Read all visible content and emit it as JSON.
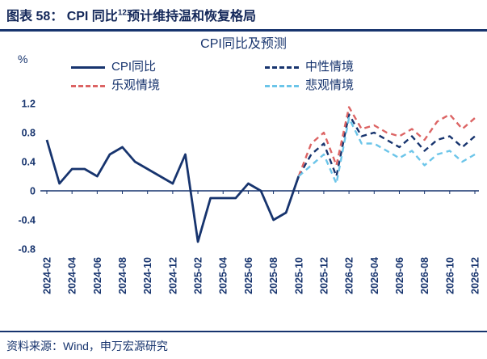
{
  "header": {
    "title_prefix": "图表 58： CPI 同比",
    "title_sup": "12",
    "title_suffix": "预计维持温和恢复格局"
  },
  "footer": {
    "source": "资料来源：Wind，申万宏源研究"
  },
  "colors": {
    "navy": "#17346e",
    "red": "#dc6464",
    "light_blue": "#6cc5e9"
  },
  "chart_data": {
    "type": "line",
    "title": "CPI同比及预测",
    "y_unit": "%",
    "ylim": [
      -0.8,
      1.2
    ],
    "y_ticks": [
      "1.2",
      "0.8",
      "0.4",
      "0",
      "-0.4",
      "-0.8"
    ],
    "x_tick_every": 2,
    "axis_color": "#17346e",
    "grid": false,
    "legend_position": "top",
    "x": [
      "2024-02",
      "2024-03",
      "2024-04",
      "2024-05",
      "2024-06",
      "2024-07",
      "2024-08",
      "2024-09",
      "2024-10",
      "2024-11",
      "2024-12",
      "2025-01",
      "2025-02",
      "2025-03",
      "2025-04",
      "2025-05",
      "2025-06",
      "2025-07",
      "2025-08",
      "2025-09",
      "2025-10",
      "2025-11",
      "2025-12",
      "2026-01",
      "2026-02",
      "2026-03",
      "2026-04",
      "2026-05",
      "2026-06",
      "2026-07",
      "2026-08",
      "2026-09",
      "2026-10",
      "2026-11",
      "2026-12"
    ],
    "series": [
      {
        "name": "CPI同比",
        "color": "#17346e",
        "style": "solid",
        "values": [
          0.7,
          0.1,
          0.3,
          0.3,
          0.2,
          0.5,
          0.6,
          0.4,
          0.3,
          0.2,
          0.1,
          0.5,
          -0.7,
          -0.1,
          -0.1,
          -0.1,
          0.1,
          0.0,
          -0.4,
          -0.3,
          0.2,
          null,
          null,
          null,
          null,
          null,
          null,
          null,
          null,
          null,
          null,
          null,
          null,
          null,
          null
        ]
      },
      {
        "name": "中性情境",
        "color": "#17346e",
        "style": "dashed",
        "values": [
          null,
          null,
          null,
          null,
          null,
          null,
          null,
          null,
          null,
          null,
          null,
          null,
          null,
          null,
          null,
          null,
          null,
          null,
          null,
          null,
          0.2,
          0.5,
          0.65,
          0.2,
          1.05,
          0.75,
          0.8,
          0.7,
          0.6,
          0.75,
          0.55,
          0.7,
          0.75,
          0.6,
          0.75
        ]
      },
      {
        "name": "乐观情境",
        "color": "#dc6464",
        "style": "dashed",
        "values": [
          null,
          null,
          null,
          null,
          null,
          null,
          null,
          null,
          null,
          null,
          null,
          null,
          null,
          null,
          null,
          null,
          null,
          null,
          null,
          null,
          0.2,
          0.65,
          0.8,
          0.35,
          1.15,
          0.85,
          0.9,
          0.8,
          0.75,
          0.85,
          0.7,
          0.95,
          1.05,
          0.85,
          1.0
        ]
      },
      {
        "name": "悲观情境",
        "color": "#6cc5e9",
        "style": "dashed",
        "values": [
          null,
          null,
          null,
          null,
          null,
          null,
          null,
          null,
          null,
          null,
          null,
          null,
          null,
          null,
          null,
          null,
          null,
          null,
          null,
          null,
          0.2,
          0.35,
          0.5,
          0.1,
          1.0,
          0.65,
          0.65,
          0.55,
          0.45,
          0.55,
          0.35,
          0.5,
          0.55,
          0.4,
          0.5
        ]
      }
    ]
  }
}
